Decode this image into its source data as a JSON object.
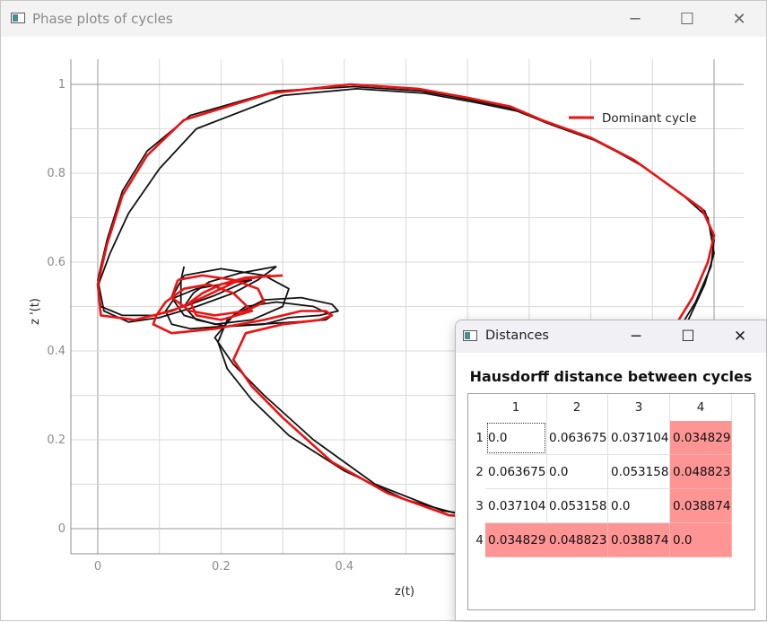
{
  "main_window": {
    "title": "Phase plots of cycles",
    "controls": {
      "minimize": "─",
      "maximize": "☐",
      "close": "✕"
    }
  },
  "chart_data": {
    "type": "line",
    "xlabel": "z(t)",
    "ylabel": "z '(t)",
    "xlim": [
      -0.045,
      1.045
    ],
    "ylim": [
      -0.052,
      1.052
    ],
    "x_ticks": [
      "0",
      "0.2",
      "0.4"
    ],
    "x_tick_values": [
      0,
      0.2,
      0.4
    ],
    "y_ticks": [
      "0",
      "0.2",
      "0.4",
      "0.6",
      "0.8",
      "1"
    ],
    "y_tick_values": [
      0,
      0.2,
      0.4,
      0.6,
      0.8,
      1.0
    ],
    "grid": true,
    "legend_position": "top-right",
    "series": [
      {
        "name": "Dominant cycle",
        "color": "#ee1111",
        "x": [
          0.3,
          0.24,
          0.2,
          0.17,
          0.15,
          0.16,
          0.2,
          0.25,
          0.22,
          0.18,
          0.14,
          0.11,
          0.095,
          0.09,
          0.12,
          0.19,
          0.27,
          0.33,
          0.37,
          0.38,
          0.36,
          0.3,
          0.24,
          0.22,
          0.25,
          0.3,
          0.38,
          0.47,
          0.57,
          0.68,
          0.72,
          0.74,
          0.8,
          0.86,
          0.925,
          0.965,
          0.99,
          1.0,
          0.98,
          0.93,
          0.87,
          0.8,
          0.72,
          0.67,
          0.6,
          0.52,
          0.41,
          0.28,
          0.14,
          0.08,
          0.04,
          0.015,
          0.0,
          0.005,
          0.06,
          0.12,
          0.17,
          0.2,
          0.23,
          0.28
        ],
        "y": [
          0.57,
          0.565,
          0.55,
          0.53,
          0.51,
          0.48,
          0.47,
          0.49,
          0.53,
          0.55,
          0.54,
          0.51,
          0.48,
          0.46,
          0.44,
          0.45,
          0.47,
          0.49,
          0.49,
          0.48,
          0.47,
          0.46,
          0.44,
          0.38,
          0.32,
          0.25,
          0.15,
          0.08,
          0.03,
          0.02,
          0.06,
          0.13,
          0.23,
          0.32,
          0.43,
          0.52,
          0.6,
          0.66,
          0.72,
          0.77,
          0.83,
          0.88,
          0.92,
          0.95,
          0.97,
          0.99,
          1.0,
          0.98,
          0.92,
          0.84,
          0.75,
          0.64,
          0.55,
          0.48,
          0.47,
          0.49,
          0.52,
          0.54,
          0.56,
          0.57
        ]
      },
      {
        "name": "",
        "color": "#111111",
        "x": [
          0.29,
          0.23,
          0.18,
          0.155,
          0.14,
          0.16,
          0.21,
          0.27,
          0.31,
          0.36,
          0.39,
          0.38,
          0.33,
          0.27,
          0.22,
          0.19,
          0.22,
          0.27,
          0.35,
          0.45,
          0.56,
          0.67,
          0.73,
          0.75,
          0.81,
          0.87,
          0.93,
          0.97,
          0.995,
          1.0,
          0.985,
          0.935,
          0.875,
          0.805,
          0.725,
          0.675,
          0.605,
          0.525,
          0.415,
          0.29,
          0.15,
          0.08,
          0.04,
          0.015,
          0.0,
          0.01,
          0.05,
          0.1,
          0.16,
          0.22,
          0.26,
          0.29
        ],
        "y": [
          0.59,
          0.575,
          0.555,
          0.53,
          0.5,
          0.47,
          0.455,
          0.46,
          0.475,
          0.48,
          0.49,
          0.505,
          0.52,
          0.515,
          0.48,
          0.43,
          0.37,
          0.3,
          0.2,
          0.1,
          0.04,
          0.02,
          0.05,
          0.12,
          0.22,
          0.31,
          0.42,
          0.51,
          0.59,
          0.65,
          0.715,
          0.765,
          0.825,
          0.875,
          0.915,
          0.945,
          0.965,
          0.985,
          0.995,
          0.985,
          0.93,
          0.85,
          0.76,
          0.65,
          0.56,
          0.49,
          0.465,
          0.475,
          0.5,
          0.53,
          0.56,
          0.59
        ]
      },
      {
        "name": "",
        "color": "#111111",
        "x": [
          0.25,
          0.2,
          0.16,
          0.125,
          0.11,
          0.12,
          0.15,
          0.2,
          0.26,
          0.32,
          0.37,
          0.38,
          0.35,
          0.29,
          0.24,
          0.21,
          0.195,
          0.21,
          0.25,
          0.31,
          0.4,
          0.5,
          0.58,
          0.66,
          0.7,
          0.73,
          0.78,
          0.85,
          0.91,
          0.955,
          0.985,
          1.0,
          0.99,
          0.95,
          0.885,
          0.815,
          0.735,
          0.68,
          0.61,
          0.53,
          0.42,
          0.3,
          0.16,
          0.1,
          0.05,
          0.02,
          0.0,
          0.005,
          0.04,
          0.09,
          0.14,
          0.19,
          0.23,
          0.25
        ],
        "y": [
          0.56,
          0.55,
          0.54,
          0.52,
          0.49,
          0.46,
          0.45,
          0.455,
          0.46,
          0.465,
          0.47,
          0.48,
          0.5,
          0.51,
          0.5,
          0.47,
          0.42,
          0.36,
          0.29,
          0.21,
          0.13,
          0.065,
          0.035,
          0.02,
          0.03,
          0.08,
          0.18,
          0.28,
          0.38,
          0.46,
          0.55,
          0.62,
          0.7,
          0.75,
          0.815,
          0.87,
          0.91,
          0.94,
          0.96,
          0.98,
          0.99,
          0.975,
          0.9,
          0.81,
          0.71,
          0.62,
          0.545,
          0.5,
          0.48,
          0.48,
          0.5,
          0.525,
          0.55,
          0.56
        ]
      },
      {
        "name": "",
        "color": "#111111",
        "x": [
          0.14,
          0.2,
          0.27,
          0.31,
          0.3,
          0.25,
          0.19,
          0.14,
          0.12,
          0.14
        ],
        "y": [
          0.57,
          0.585,
          0.57,
          0.54,
          0.5,
          0.47,
          0.46,
          0.48,
          0.52,
          0.57
        ]
      },
      {
        "name": "",
        "color": "#111111",
        "x": [
          0.135,
          0.135,
          0.14
        ],
        "y": [
          0.5,
          0.56,
          0.59
        ]
      },
      {
        "name": "",
        "color": "#ee1111",
        "x": [
          0.13,
          0.17,
          0.22,
          0.26,
          0.27,
          0.24,
          0.19,
          0.15,
          0.12,
          0.13
        ],
        "y": [
          0.56,
          0.57,
          0.56,
          0.54,
          0.51,
          0.49,
          0.48,
          0.49,
          0.52,
          0.56
        ]
      }
    ]
  },
  "distances_window": {
    "title": "Distances",
    "controls": {
      "minimize": "─",
      "maximize": "☐",
      "close": "✕"
    },
    "heading": "Hausdorff distance between cycles",
    "column_headers": [
      "1",
      "2",
      "3",
      "4"
    ],
    "row_headers": [
      "1",
      "2",
      "3",
      "4"
    ],
    "rows": [
      [
        "0.0",
        "0.063675",
        "0.037104",
        "0.034829"
      ],
      [
        "0.063675",
        "0.0",
        "0.053158",
        "0.048823"
      ],
      [
        "0.037104",
        "0.053158",
        "0.0",
        "0.038874"
      ],
      [
        "0.034829",
        "0.048823",
        "0.038874",
        "0.0"
      ]
    ],
    "highlighted_cells": [
      [
        0,
        3
      ],
      [
        1,
        3
      ],
      [
        2,
        3
      ],
      [
        3,
        0
      ],
      [
        3,
        1
      ],
      [
        3,
        2
      ],
      [
        3,
        3
      ]
    ],
    "highlight_color": "#ff9494"
  }
}
